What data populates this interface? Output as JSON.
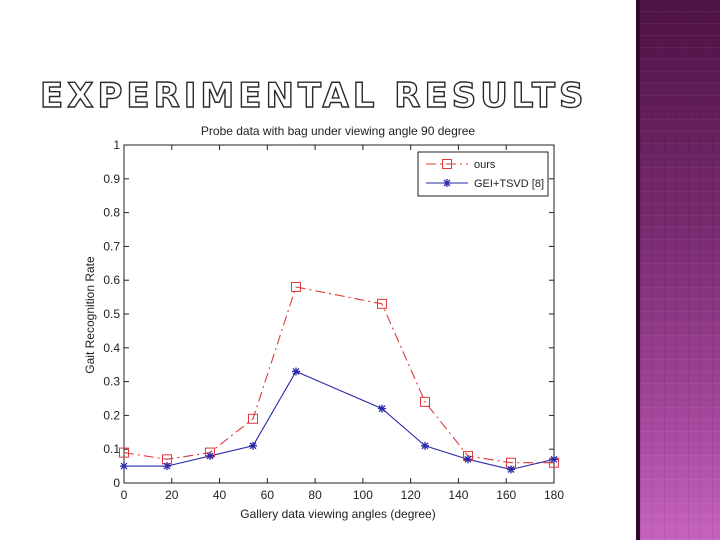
{
  "slide": {
    "title": "EXPERIMENTAL RESULTS"
  },
  "chart_data": {
    "type": "line",
    "title": "Probe data with bag under viewing angle 90 degree",
    "xlabel": "Gallery data viewing angles (degree)",
    "ylabel": "Gait Recognition Rate",
    "x": [
      0,
      18,
      36,
      54,
      72,
      108,
      126,
      144,
      162,
      180
    ],
    "xlim": [
      0,
      180
    ],
    "ylim": [
      0,
      1
    ],
    "xticks": [
      "0",
      "20",
      "40",
      "60",
      "80",
      "100",
      "120",
      "140",
      "160",
      "180"
    ],
    "yticks": [
      "0",
      "0.1",
      "0.2",
      "0.3",
      "0.4",
      "0.5",
      "0.6",
      "0.7",
      "0.8",
      "0.9",
      "1"
    ],
    "grid": false,
    "legend_position": "top-right",
    "series": [
      {
        "name": "ours",
        "color": "#e03a3a",
        "marker": "square",
        "line": "dash-dot",
        "values": [
          0.09,
          0.07,
          0.09,
          0.19,
          0.58,
          0.53,
          0.24,
          0.08,
          0.06,
          0.06
        ]
      },
      {
        "name": "GEI+TSVD [8]",
        "color": "#2a2aaa",
        "marker": "star",
        "line": "solid",
        "values": [
          0.05,
          0.05,
          0.08,
          0.11,
          0.33,
          0.22,
          0.11,
          0.07,
          0.04,
          0.07
        ]
      }
    ]
  }
}
